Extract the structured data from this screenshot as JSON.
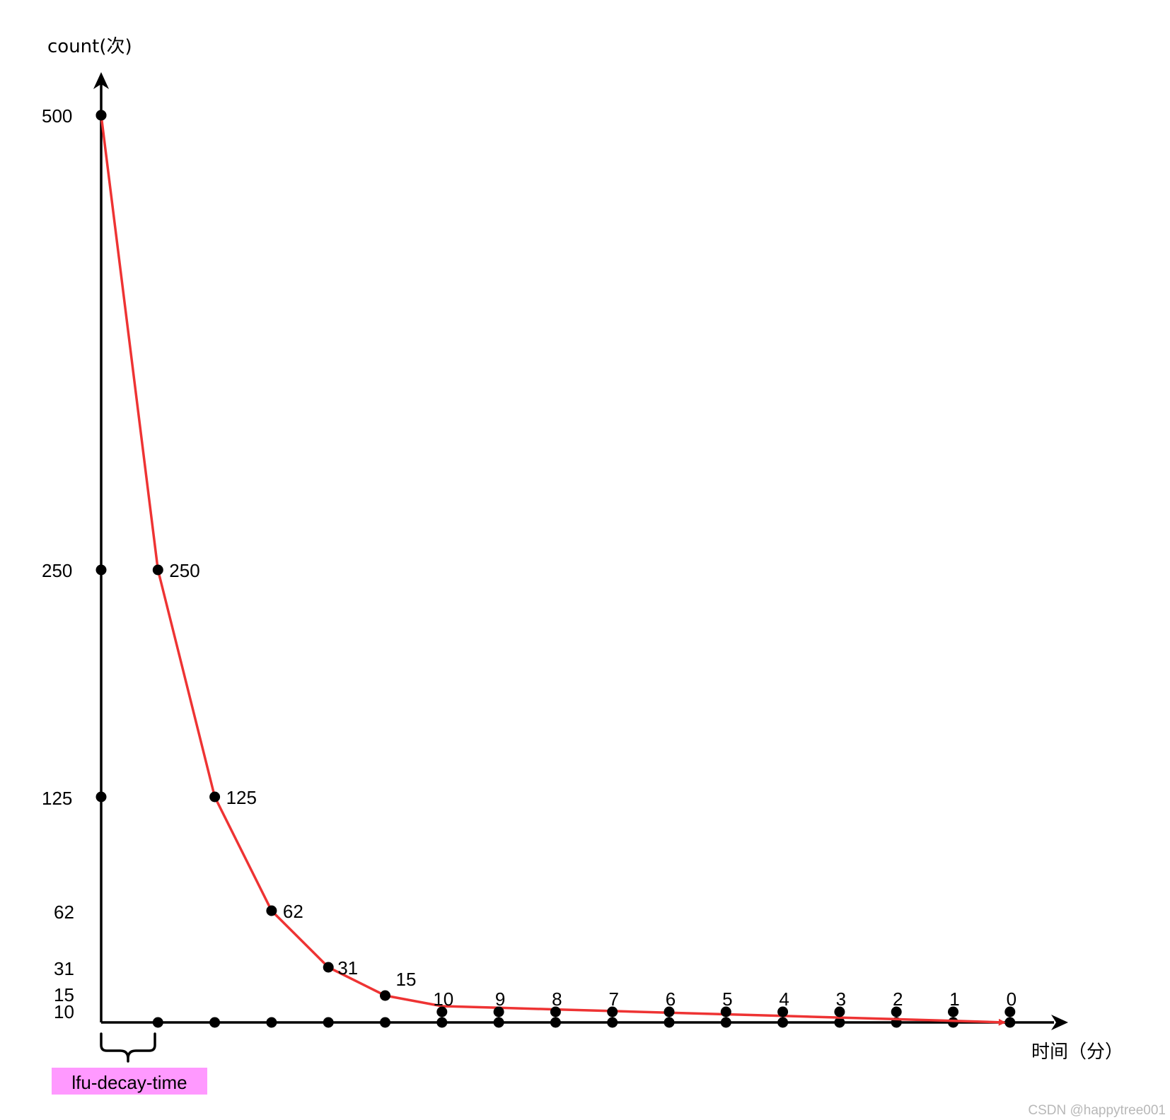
{
  "chart_data": {
    "type": "line",
    "ylabel": "count(次)",
    "xlabel": "时间（分）",
    "y_tick_labels": [
      "500",
      "250",
      "125",
      "62",
      "31",
      "15",
      "10"
    ],
    "x_points": 16,
    "series": [
      {
        "values": [
          500,
          250,
          125,
          62,
          31,
          15,
          10,
          9,
          8,
          7,
          6,
          5,
          4,
          3,
          2,
          1,
          0
        ]
      }
    ],
    "point_labels": [
      "250",
      "125",
      "62",
      "31",
      "15",
      "10",
      "9",
      "8",
      "7",
      "6",
      "5",
      "4",
      "3",
      "2",
      "1",
      "0"
    ],
    "annotation": "lfu-decay-time",
    "annotation_color": "#ff99ff",
    "line_color": "#ee3333",
    "axis_color": "#000000",
    "grid": false
  },
  "watermark": "CSDN @happytree001"
}
